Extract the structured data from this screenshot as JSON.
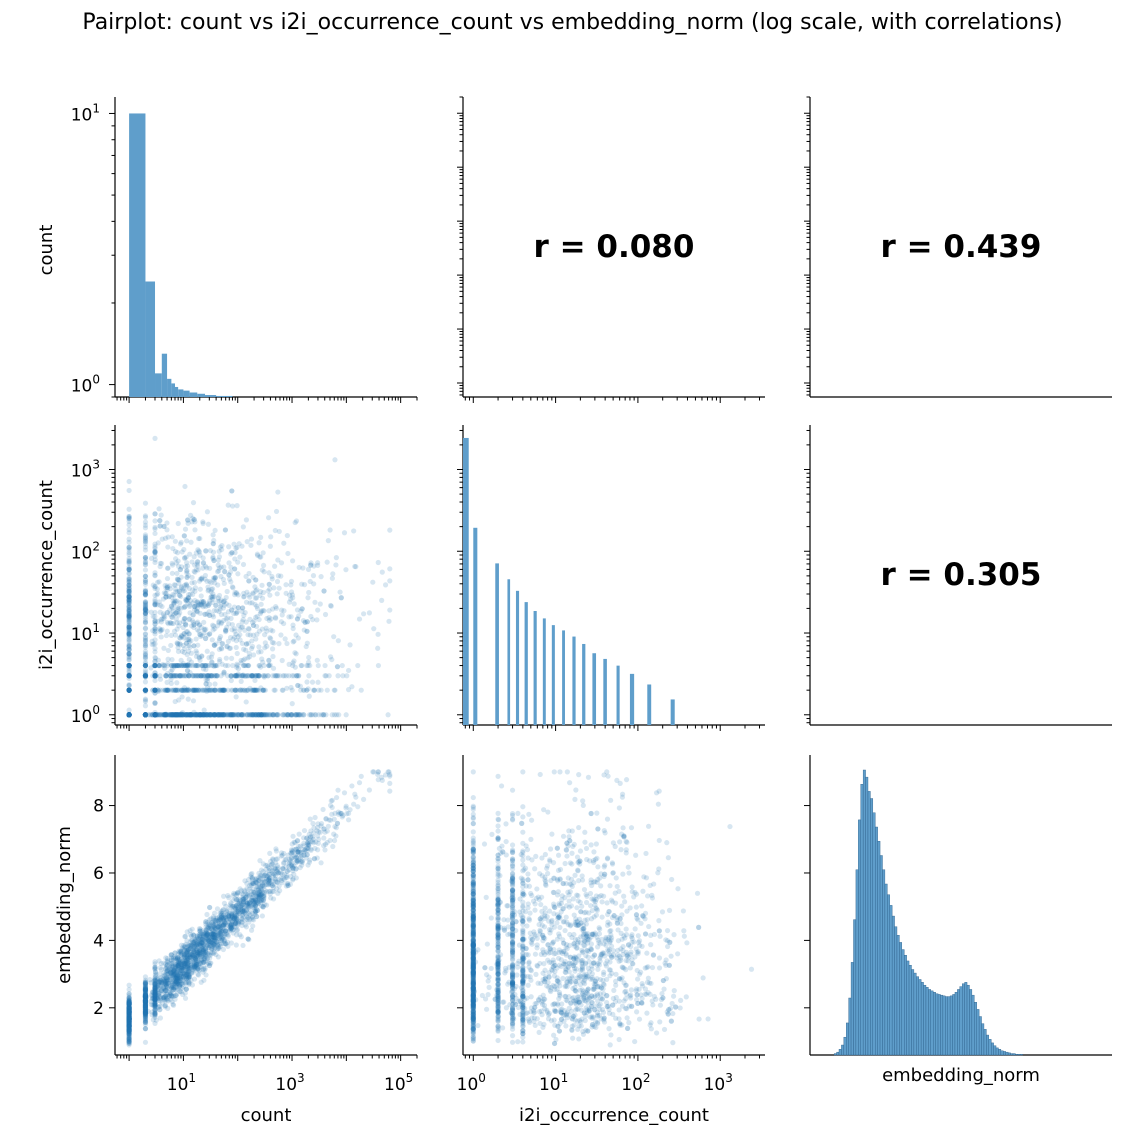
{
  "title": "Pairplot: count vs i2i_occurrence_count vs embedding_norm (log scale, with correlations)",
  "colors": {
    "point": "#1f77b4",
    "hist": "#5f9ecb",
    "axis": "#000000"
  },
  "chart_data": {
    "type": "pairplot",
    "title": "Pairplot: count vs i2i_occurrence_count vs embedding_norm (log scale, with correlations)",
    "variables": [
      "count",
      "i2i_occurrence_count",
      "embedding_norm"
    ],
    "scales": {
      "count": "log",
      "i2i_occurrence_count": "log",
      "embedding_norm": "linear"
    },
    "axes": {
      "count": {
        "x_ticks": [
          "10^1",
          "10^3",
          "10^5"
        ],
        "lim": [
          0.55,
          200000
        ]
      },
      "i2i_occurrence_count": {
        "x_ticks": [
          "10^0",
          "10^1",
          "10^2",
          "10^3"
        ],
        "y_ticks": [
          "10^0",
          "10^1",
          "10^2",
          "10^3"
        ],
        "lim": [
          0.75,
          3500
        ]
      },
      "embedding_norm": {
        "y_ticks": [
          "2",
          "4",
          "6",
          "8"
        ],
        "lim": [
          0.6,
          9.5
        ]
      }
    },
    "xlabels": [
      "count",
      "i2i_occurrence_count",
      "embedding_norm"
    ],
    "ylabels": [
      "count",
      "i2i_occurrence_count",
      "embedding_norm"
    ],
    "correlations": [
      {
        "row": 0,
        "col": 1,
        "label": "r = 0.080",
        "value": 0.08
      },
      {
        "row": 0,
        "col": 2,
        "label": "r = 0.439",
        "value": 0.439
      },
      {
        "row": 1,
        "col": 2,
        "label": "r = 0.305",
        "value": 0.305
      }
    ],
    "hist_count": {
      "y_ticks": [
        "10^0",
        "10^1"
      ],
      "ylim": [
        0.9,
        11.5
      ],
      "bins": [
        {
          "x0": 1,
          "x1": 2,
          "value": 10
        },
        {
          "x0": 2,
          "x1": 3,
          "value": 2.4
        },
        {
          "x0": 3,
          "x1": 4,
          "value": 1.1
        },
        {
          "x0": 4,
          "x1": 5,
          "value": 1.3
        },
        {
          "x0": 5,
          "x1": 6,
          "value": 1.05
        },
        {
          "x0": 6,
          "x1": 7,
          "value": 1.01
        },
        {
          "x0": 7,
          "x1": 8,
          "value": 0.98
        },
        {
          "x0": 8,
          "x1": 10,
          "value": 0.96
        },
        {
          "x0": 10,
          "x1": 13,
          "value": 0.95
        },
        {
          "x0": 13,
          "x1": 18,
          "value": 0.935
        },
        {
          "x0": 18,
          "x1": 25,
          "value": 0.925
        },
        {
          "x0": 25,
          "x1": 40,
          "value": 0.915
        },
        {
          "x0": 40,
          "x1": 80,
          "value": 0.908
        }
      ]
    },
    "hist_i2i": {
      "bins": [
        {
          "x0": 0.75,
          "x1": 0.88,
          "value": 2400
        },
        {
          "x0": 1.0,
          "x1": 1.12,
          "value": 210
        },
        {
          "x0": 1.85,
          "x1": 2.05,
          "value": 80
        },
        {
          "x0": 2.6,
          "x1": 2.8,
          "value": 52
        },
        {
          "x0": 3.3,
          "x1": 3.6,
          "value": 38
        },
        {
          "x0": 4.2,
          "x1": 4.6,
          "value": 28
        },
        {
          "x0": 5.4,
          "x1": 5.9,
          "value": 22
        },
        {
          "x0": 7,
          "x1": 7.6,
          "value": 18
        },
        {
          "x0": 9,
          "x1": 9.8,
          "value": 15
        },
        {
          "x0": 12,
          "x1": 13,
          "value": 13
        },
        {
          "x0": 16,
          "x1": 17.5,
          "value": 11
        },
        {
          "x0": 21,
          "x1": 23,
          "value": 9
        },
        {
          "x0": 28,
          "x1": 31,
          "value": 7
        },
        {
          "x0": 38,
          "x1": 42,
          "value": 6
        },
        {
          "x0": 55,
          "x1": 60,
          "value": 5
        },
        {
          "x0": 80,
          "x1": 90,
          "value": 4
        },
        {
          "x0": 130,
          "x1": 145,
          "value": 3
        },
        {
          "x0": 250,
          "x1": 280,
          "value": 2
        }
      ]
    },
    "hist_norm": {
      "x_start": 0.8,
      "bin_width": 0.08,
      "values": [
        2,
        4,
        8,
        14,
        25,
        45,
        80,
        130,
        190,
        260,
        330,
        380,
        400,
        390,
        370,
        360,
        340,
        320,
        300,
        280,
        260,
        240,
        225,
        210,
        195,
        180,
        168,
        158,
        148,
        140,
        132,
        126,
        120,
        115,
        110,
        106,
        102,
        98,
        95,
        92,
        90,
        88,
        86,
        85,
        84,
        83,
        82,
        82,
        83,
        85,
        88,
        92,
        96,
        100,
        102,
        98,
        92,
        84,
        74,
        64,
        54,
        44,
        36,
        28,
        22,
        17,
        13,
        10,
        8,
        6,
        5,
        4,
        3,
        2,
        2,
        1,
        1,
        1
      ]
    }
  }
}
